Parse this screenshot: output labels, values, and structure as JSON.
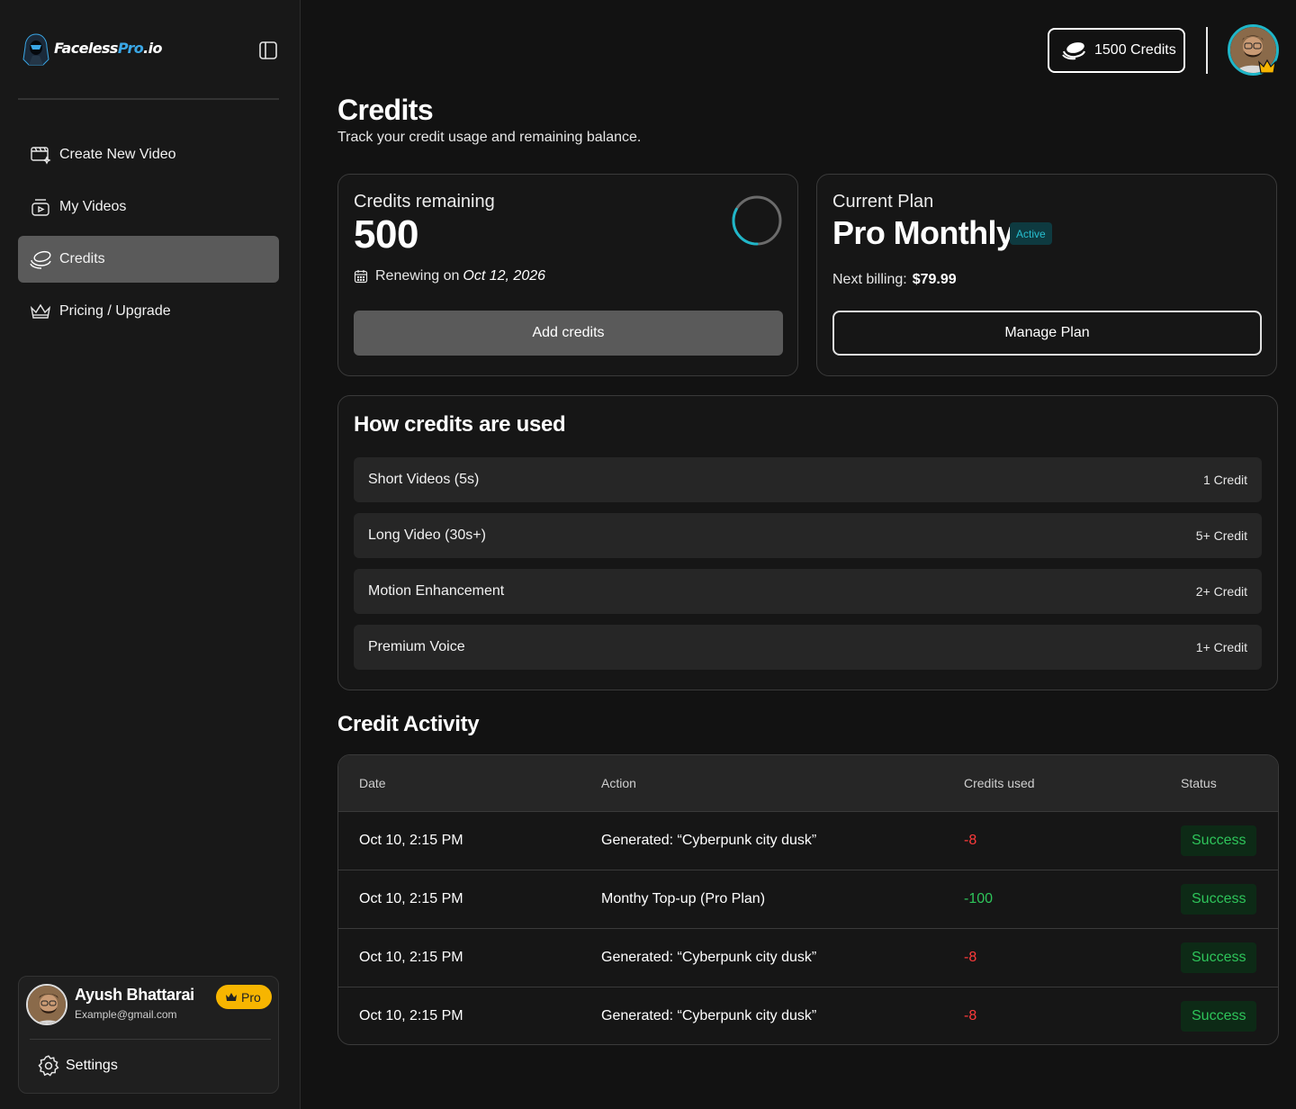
{
  "brand": {
    "name_part1": "Faceless",
    "name_part2": "Pro",
    "name_part3": ".io"
  },
  "sidebar": {
    "items": [
      {
        "label": "Create New Video",
        "icon": "video-create-icon"
      },
      {
        "label": "My Videos",
        "icon": "video-library-icon"
      },
      {
        "label": "Credits",
        "icon": "coins-icon",
        "active": true
      },
      {
        "label": "Pricing / Upgrade",
        "icon": "crown-icon"
      }
    ],
    "user": {
      "name": "Ayush Bhattarai",
      "email": "Example@gmail.com",
      "badge": "Pro",
      "settings_label": "Settings"
    }
  },
  "topbar": {
    "credits_label": "1500 Credits"
  },
  "page": {
    "title": "Credits",
    "subtitle": "Track your credit usage and remaining balance."
  },
  "credits_card": {
    "label": "Credits remaining",
    "value": "500",
    "renew_prefix": "Renewing on",
    "renew_date": "Oct 12, 2026",
    "add_button": "Add credits",
    "ring_progress": 0.33
  },
  "plan_card": {
    "label": "Current Plan",
    "plan": "Pro Monthly",
    "status": "Active",
    "billing_label": "Next billing:",
    "billing_amount": "$79.99",
    "manage_button": "Manage Plan"
  },
  "usage": {
    "title": "How credits are used",
    "rows": [
      {
        "name": "Short Videos (5s)",
        "cost": "1 Credit"
      },
      {
        "name": "Long Video (30s+)",
        "cost": "5+ Credit"
      },
      {
        "name": "Motion Enhancement",
        "cost": "2+ Credit"
      },
      {
        "name": "Premium Voice",
        "cost": "1+ Credit"
      }
    ]
  },
  "activity": {
    "title": "Credit Activity",
    "headers": {
      "date": "Date",
      "action": "Action",
      "credits": "Credits used",
      "status": "Status"
    },
    "rows": [
      {
        "date": "Oct 10, 2:15 PM",
        "action": "Generated: “Cyberpunk city dusk”",
        "credits": "-8",
        "status": "Success"
      },
      {
        "date": "Oct 10, 2:15 PM",
        "action": "Monthy Top-up (Pro Plan)",
        "credits": "-100",
        "status": "Success"
      },
      {
        "date": "Oct 10, 2:15 PM",
        "action": "Generated: “Cyberpunk city dusk”",
        "credits": "-8",
        "status": "Success"
      },
      {
        "date": "Oct 10, 2:15 PM",
        "action": "Generated: “Cyberpunk city dusk”",
        "credits": "-8",
        "status": "Success"
      }
    ]
  },
  "colors": {
    "background": "#121212",
    "sidebar": "#181818",
    "accent_cyan": "#27bfd0",
    "negative": "#ff3b3b",
    "positive": "#2ec45a",
    "pro_badge": "#f7b500"
  }
}
